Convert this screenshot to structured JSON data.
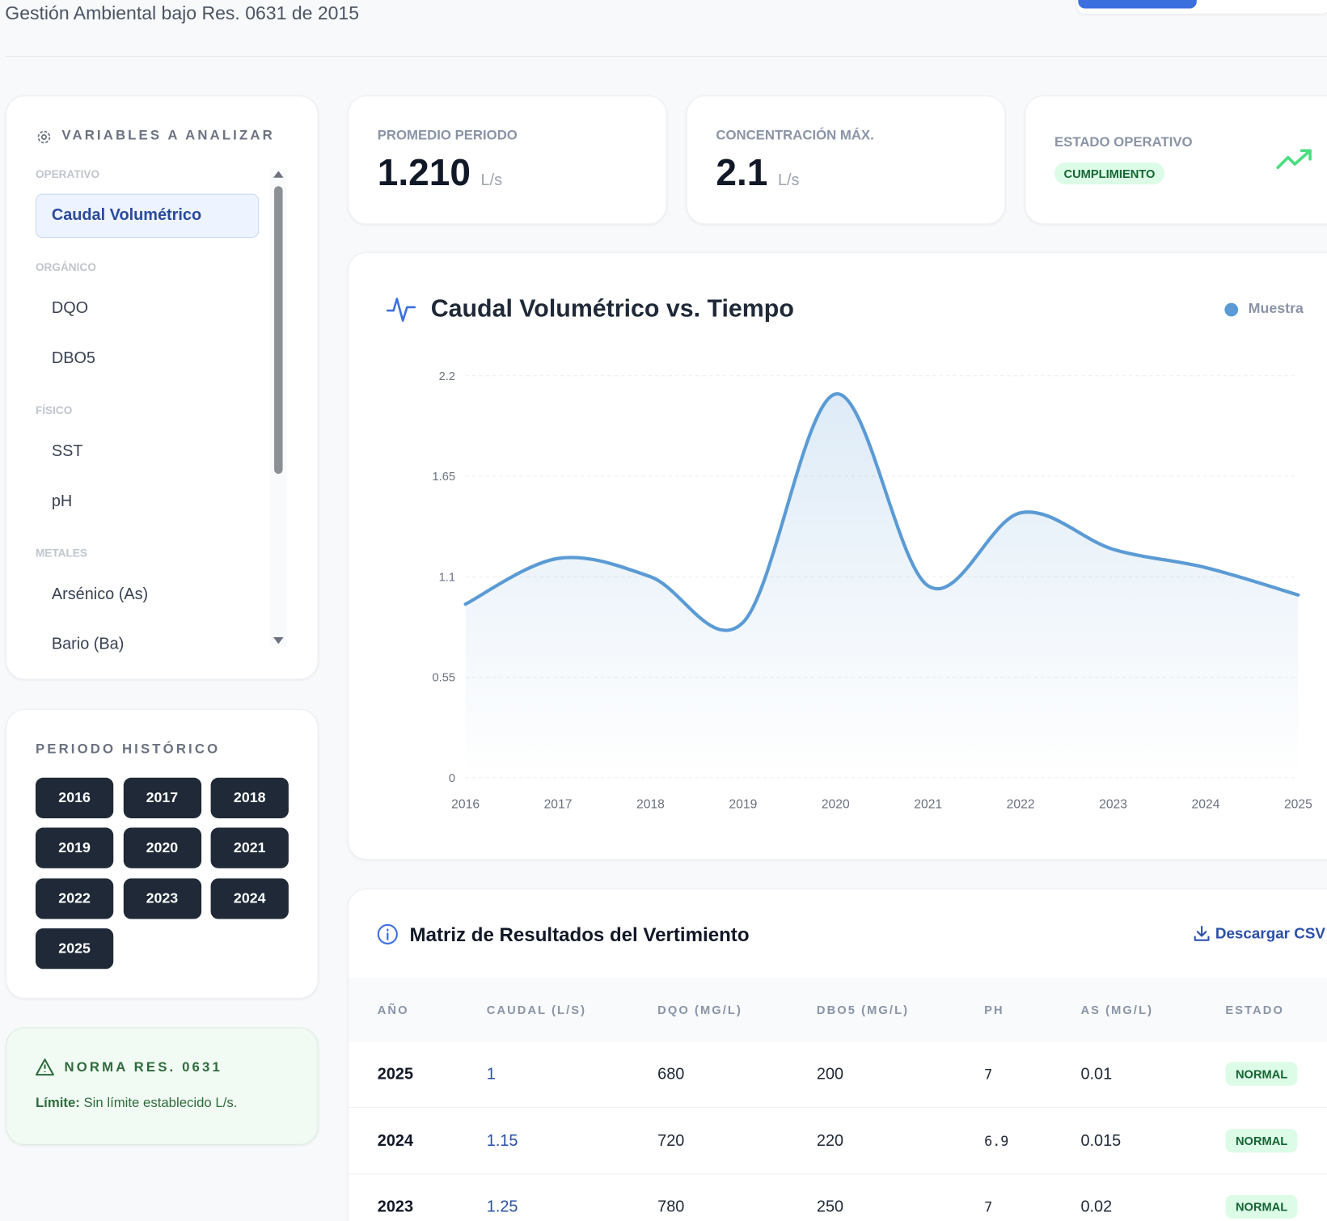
{
  "header": {
    "subtitle": "Gestión Ambiental bajo Res. 0631 de 2015"
  },
  "variables": {
    "title": "VARIABLES A ANALIZAR",
    "groups": [
      {
        "label": "OPERATIVO",
        "items": [
          "Caudal Volumétrico"
        ]
      },
      {
        "label": "ORGÁNICO",
        "items": [
          "DQO",
          "DBO5"
        ]
      },
      {
        "label": "FÍSICO",
        "items": [
          "SST",
          "pH"
        ]
      },
      {
        "label": "METALES",
        "items": [
          "Arsénico (As)",
          "Bario (Ba)"
        ]
      }
    ]
  },
  "period": {
    "title": "PERIODO HISTÓRICO",
    "years": [
      "2016",
      "2017",
      "2018",
      "2019",
      "2020",
      "2021",
      "2022",
      "2023",
      "2024",
      "2025"
    ]
  },
  "norm": {
    "title": "NORMA RES. 0631",
    "label": "Límite:",
    "text": "Sin límite establecido L/s."
  },
  "kpis": [
    {
      "label": "PROMEDIO PERIODO",
      "value": "1.210",
      "unit": "L/s"
    },
    {
      "label": "CONCENTRACIÓN MÁX.",
      "value": "2.1",
      "unit": "L/s"
    },
    {
      "label": "ESTADO OPERATIVO",
      "badge": "CUMPLIMIENTO"
    }
  ],
  "chart_data": {
    "type": "line",
    "title": "Caudal Volumétrico vs. Tiempo",
    "x": [
      2016,
      2017,
      2018,
      2019,
      2020,
      2021,
      2022,
      2023,
      2024,
      2025
    ],
    "series": [
      {
        "name": "Muestra",
        "color": "#5b9bd5",
        "values": [
          0.95,
          1.2,
          1.1,
          0.85,
          2.1,
          1.05,
          1.45,
          1.25,
          1.15,
          1
        ]
      }
    ],
    "xlim": [
      2016,
      2025
    ],
    "xticks": [
      2016,
      2017,
      2018,
      2019,
      2020,
      2021,
      2022,
      2023,
      2024,
      2025
    ],
    "ylim": [
      0,
      2.2
    ],
    "yticks": [
      0,
      0.55,
      1.1,
      1.65,
      2.2
    ],
    "grid": true
  },
  "table": {
    "title": "Matriz de Resultados del Vertimiento",
    "action": "Descargar CSV",
    "columns": [
      "AÑO",
      "CAUDAL (L/S)",
      "DQO (MG/L)",
      "DBO5 (MG/L)",
      "PH",
      "AS (MG/L)",
      "ESTADO"
    ],
    "rows": [
      [
        2025,
        1,
        680,
        200,
        7,
        0.01,
        "NORMAL"
      ],
      [
        2024,
        1.15,
        720,
        220,
        6.9,
        0.015,
        "NORMAL"
      ],
      [
        2023,
        1.25,
        780,
        250,
        7,
        0.02,
        "NORMAL"
      ]
    ]
  }
}
